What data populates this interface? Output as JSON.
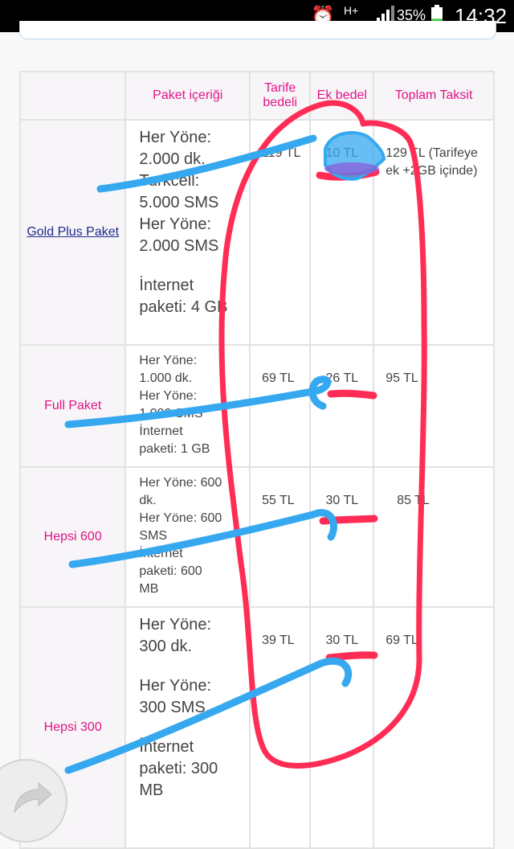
{
  "status_bar": {
    "network": "H+",
    "battery_percent": "35%",
    "time": "14:32",
    "battery_level": 0.35
  },
  "table": {
    "headers": {
      "content": "Paket içeriği",
      "tarife": "Tarife bedeli",
      "ek": "Ek bedel",
      "toplam": "Toplam Taksit"
    },
    "rows": [
      {
        "name": "Gold Plus Paket",
        "content_lines": [
          "Her Yöne:",
          "2.000 dk.",
          "Turkcell:",
          "5.000 SMS",
          "Her Yöne:",
          "2.000 SMS",
          "",
          "İnternet",
          "paketi: 4 GB"
        ],
        "tarife": "119 TL",
        "ek": "10 TL",
        "toplam": "129 TL (Tarifeye ek +2GB içinde)"
      },
      {
        "name": "Full Paket",
        "content_lines": [
          "Her Yöne:",
          "1.000 dk.",
          "Her Yöne:",
          "1.000 SMS",
          "İnternet",
          "paketi: 1 GB"
        ],
        "tarife": "69 TL",
        "ek": "26 TL",
        "toplam": "95 TL"
      },
      {
        "name": "Hepsi 600",
        "content_lines": [
          "Her Yöne: 600",
          "dk.",
          "Her Yöne: 600",
          "SMS",
          "İnternet",
          "paketi: 600",
          "MB"
        ],
        "tarife": "55 TL",
        "ek": "30 TL",
        "toplam": "85 TL"
      },
      {
        "name": "Hepsi 300",
        "content_lines": [
          "Her Yöne:",
          "300 dk.",
          "",
          "Her Yöne:",
          "300 SMS",
          "",
          "İnternet",
          "paketi: 300",
          "MB"
        ],
        "tarife": "39 TL",
        "ek": "30 TL",
        "toplam": "69 TL"
      }
    ]
  },
  "annotation_colors": {
    "red": "#ff2d55",
    "blue": "#35a8f0"
  },
  "icons": {
    "back": "curved-back-arrow-icon",
    "alarm": "alarm-icon",
    "signal": "signal-icon",
    "battery": "battery-icon"
  }
}
